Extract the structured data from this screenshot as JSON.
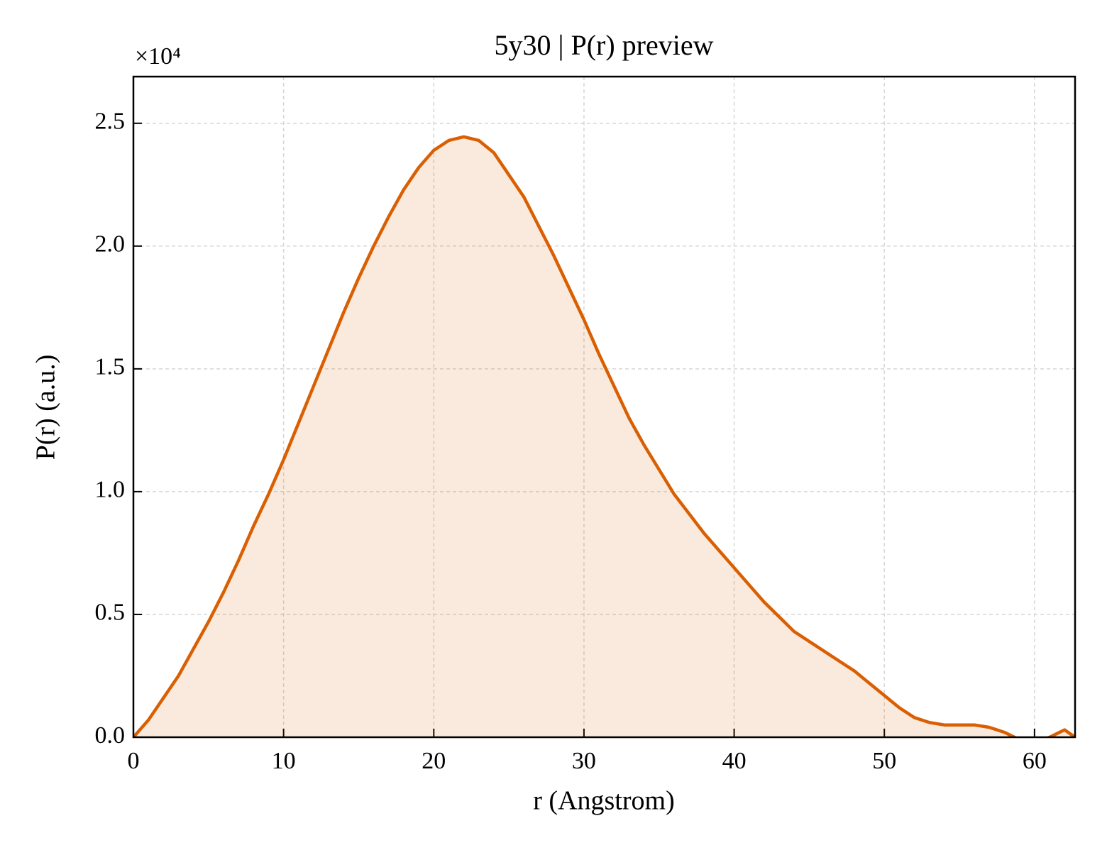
{
  "chart_data": {
    "type": "line",
    "title": "5y30 | P(r) preview",
    "xlabel": "r (Angstrom)",
    "ylabel": "P(r) (a.u.)",
    "y_offset_label": "×10⁴",
    "x": [
      0,
      1,
      2,
      3,
      4,
      5,
      6,
      7,
      8,
      9,
      10,
      11,
      12,
      13,
      14,
      15,
      16,
      17,
      18,
      19,
      20,
      21,
      22,
      23,
      24,
      25,
      26,
      27,
      28,
      29,
      30,
      31,
      32,
      33,
      34,
      35,
      36,
      37,
      38,
      39,
      40,
      41,
      42,
      43,
      44,
      45,
      46,
      47,
      48,
      49,
      50,
      51,
      52,
      53,
      54,
      55,
      56,
      57,
      58,
      59,
      60,
      61,
      62,
      62.7
    ],
    "series": [
      {
        "name": "P(r)",
        "color": "#d95f02",
        "values": [
          0,
          0.07,
          0.16,
          0.25,
          0.36,
          0.47,
          0.59,
          0.72,
          0.86,
          0.99,
          1.13,
          1.28,
          1.43,
          1.58,
          1.73,
          1.87,
          2.0,
          2.12,
          2.23,
          2.32,
          2.39,
          2.43,
          2.445,
          2.43,
          2.38,
          2.29,
          2.2,
          2.08,
          1.96,
          1.83,
          1.7,
          1.56,
          1.43,
          1.3,
          1.19,
          1.09,
          0.99,
          0.91,
          0.83,
          0.76,
          0.69,
          0.62,
          0.55,
          0.49,
          0.43,
          0.39,
          0.35,
          0.31,
          0.27,
          0.22,
          0.17,
          0.12,
          0.08,
          0.06,
          0.05,
          0.05,
          0.05,
          0.04,
          0.02,
          -0.01,
          -0.02,
          0,
          0.03,
          0
        ]
      }
    ],
    "xlim": [
      0,
      62.7
    ],
    "ylim": [
      0,
      2.69
    ],
    "xticks": [
      0,
      10,
      20,
      30,
      40,
      50,
      60
    ],
    "yticks": [
      {
        "value": 0,
        "label": "0.0"
      },
      0.5,
      {
        "value": 1,
        "label": "1.0"
      },
      1.5,
      {
        "value": 2,
        "label": "2.0"
      },
      2.5
    ],
    "grid": true,
    "fill": true
  }
}
